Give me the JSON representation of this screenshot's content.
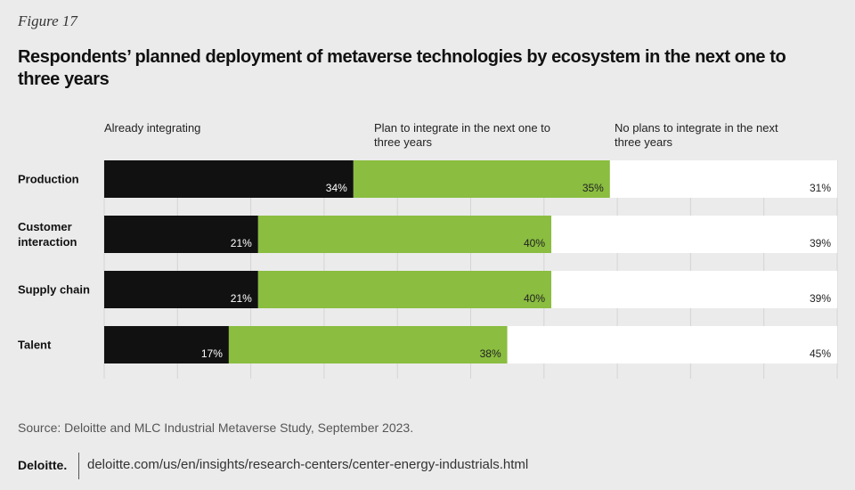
{
  "figure": "Figure 17",
  "chart_data": {
    "type": "stacked-bar",
    "orientation": "horizontal",
    "title": "Respondents’ planned deployment of metaverse technologies by ecosystem in the next one to three years",
    "categories": [
      "Production",
      "Customer interaction",
      "Supply chain",
      "Talent"
    ],
    "series": [
      {
        "name": "Already integrating",
        "color": "#111111",
        "values": [
          34,
          21,
          21,
          17
        ],
        "value_labels": [
          "34%",
          "21%",
          "21%",
          "17%"
        ]
      },
      {
        "name": "Plan to integrate in the next one to three years",
        "color": "#8abd40",
        "values": [
          35,
          40,
          40,
          38
        ],
        "value_labels": [
          "35%",
          "40%",
          "40%",
          "38%"
        ]
      },
      {
        "name": "No plans to integrate in the next three years",
        "color": "#ffffff",
        "values": [
          31,
          39,
          39,
          45
        ],
        "value_labels": [
          "31%",
          "39%",
          "39%",
          "45%"
        ]
      }
    ],
    "xlim": [
      0,
      100
    ],
    "xticks": [
      0,
      10,
      20,
      30,
      40,
      50,
      60,
      70,
      80,
      90,
      100
    ],
    "grid": true
  },
  "source": "Source: Deloitte and MLC Industrial Metaverse Study, September 2023.",
  "footer": {
    "brand": "Deloitte.",
    "url": "deloitte.com/us/en/insights/research-centers/center-energy-industrials.html"
  }
}
